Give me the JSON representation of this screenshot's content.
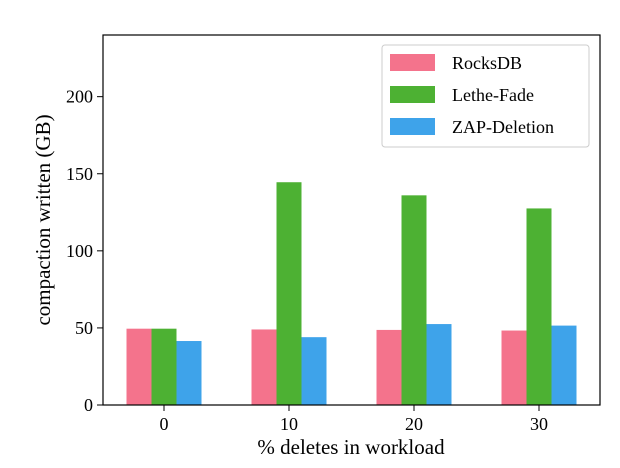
{
  "chart_data": {
    "type": "bar",
    "title": "",
    "xlabel": "% deletes in workload",
    "ylabel": "compaction written (GB)",
    "categories": [
      "0",
      "10",
      "20",
      "30"
    ],
    "ylim": [
      0,
      240
    ],
    "yticks": [
      0,
      50,
      100,
      150,
      200
    ],
    "grid": false,
    "legend_position": "top-right",
    "series": [
      {
        "name": "RocksDB",
        "color": "#f4738c",
        "values": [
          49.5,
          49,
          48.7,
          48.3
        ]
      },
      {
        "name": "Lethe-Fade",
        "color": "#4db133",
        "values": [
          49.5,
          144.5,
          136,
          127.5
        ]
      },
      {
        "name": "ZAP-Deletion",
        "color": "#3ea3ea",
        "values": [
          41.5,
          44,
          52.5,
          51.5
        ]
      }
    ]
  }
}
